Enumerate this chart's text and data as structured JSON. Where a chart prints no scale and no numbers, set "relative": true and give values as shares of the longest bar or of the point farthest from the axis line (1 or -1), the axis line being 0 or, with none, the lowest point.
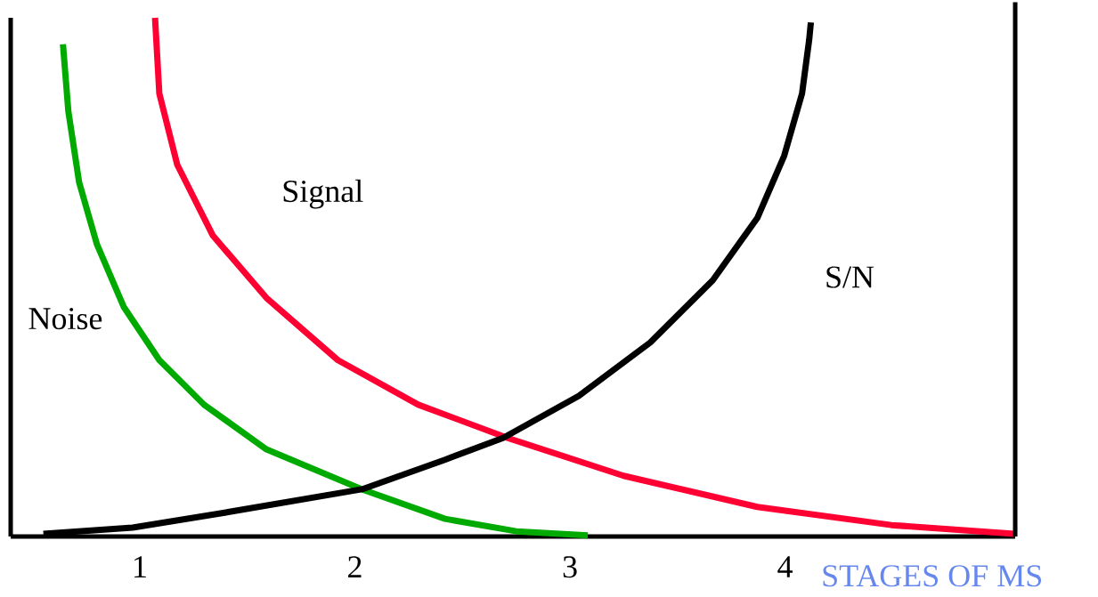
{
  "chart_data": {
    "type": "line",
    "relative": true,
    "xlabel": "STAGES OF MS",
    "xlim": [
      0.4,
      5.07
    ],
    "xticks": [
      1,
      2,
      3,
      4
    ],
    "series": [
      {
        "name": "Noise",
        "color": "#00aa00",
        "x": [
          0.643,
          0.668,
          0.718,
          0.801,
          0.925,
          1.091,
          1.299,
          1.589,
          2.033,
          2.419,
          2.751,
          3.083
        ],
        "values": [
          0.949,
          0.82,
          0.683,
          0.563,
          0.443,
          0.34,
          0.254,
          0.168,
          0.091,
          0.034,
          0.01,
          0.002
        ]
      },
      {
        "name": "Signal",
        "color": "#ff0033",
        "x": [
          1.071,
          1.091,
          1.174,
          1.34,
          1.589,
          1.921,
          2.295,
          2.71,
          3.249,
          3.871,
          4.494,
          5.066
        ],
        "values": [
          1.0,
          0.854,
          0.717,
          0.58,
          0.46,
          0.34,
          0.254,
          0.19,
          0.117,
          0.057,
          0.022,
          0.005
        ]
      },
      {
        "name": "S/N",
        "color": "#000000",
        "x": [
          0.552,
          0.967,
          1.382,
          2.033,
          2.419,
          2.689,
          3.041,
          3.373,
          3.664,
          3.871,
          3.996,
          4.079,
          4.112,
          4.12
        ],
        "values": [
          0.005,
          0.017,
          0.045,
          0.091,
          0.148,
          0.19,
          0.271,
          0.374,
          0.494,
          0.614,
          0.734,
          0.854,
          0.957,
          0.991
        ]
      }
    ]
  }
}
